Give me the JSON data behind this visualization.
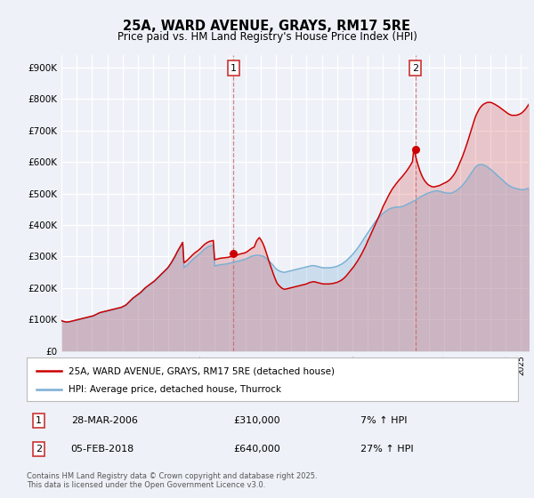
{
  "title": "25A, WARD AVENUE, GRAYS, RM17 5RE",
  "subtitle": "Price paid vs. HM Land Registry's House Price Index (HPI)",
  "ylabel_ticks": [
    "£0",
    "£100K",
    "£200K",
    "£300K",
    "£400K",
    "£500K",
    "£600K",
    "£700K",
    "£800K",
    "£900K"
  ],
  "ytick_values": [
    0,
    100000,
    200000,
    300000,
    400000,
    500000,
    600000,
    700000,
    800000,
    900000
  ],
  "ylim": [
    0,
    940000
  ],
  "xlim_start": 1995.0,
  "xlim_end": 2025.5,
  "background_color": "#eef2f8",
  "plot_bg_color": "#eef2f8",
  "grid_color": "#ffffff",
  "red_line_color": "#cc0000",
  "blue_line_color": "#7bafd4",
  "annotation_box_color": "#cc3333",
  "legend_label_red": "25A, WARD AVENUE, GRAYS, RM17 5RE (detached house)",
  "legend_label_blue": "HPI: Average price, detached house, Thurrock",
  "sale1_label": "1",
  "sale1_date": "28-MAR-2006",
  "sale1_price": "£310,000",
  "sale1_hpi": "7% ↑ HPI",
  "sale1_x": 2006.23,
  "sale1_y": 310000,
  "sale2_label": "2",
  "sale2_date": "05-FEB-2018",
  "sale2_price": "£640,000",
  "sale2_hpi": "27% ↑ HPI",
  "sale2_x": 2018.1,
  "sale2_y": 640000,
  "footer_text": "Contains HM Land Registry data © Crown copyright and database right 2025.\nThis data is licensed under the Open Government Licence v3.0."
}
